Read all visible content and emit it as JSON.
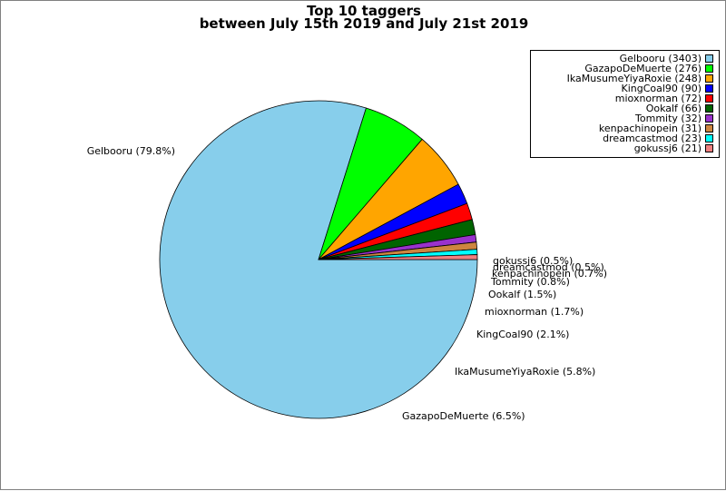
{
  "chart_data": {
    "type": "pie",
    "title": "Top 10 taggers",
    "subtitle": "between July 15th 2019 and July 21st 2019",
    "slices": [
      {
        "label": "Gelbooru",
        "value": 3403,
        "percent": "79.8%",
        "legend": "Gelbooru (3403)",
        "color": "#87ceeb"
      },
      {
        "label": "GazapoDeMuerte",
        "value": 276,
        "percent": "6.5%",
        "legend": "GazapoDeMuerte (276)",
        "color": "#00ff00"
      },
      {
        "label": "IkaMusumeYiyaRoxie",
        "value": 248,
        "percent": "5.8%",
        "legend": "IkaMusumeYiyaRoxie (248)",
        "color": "#ffa500"
      },
      {
        "label": "KingCoal90",
        "value": 90,
        "percent": "2.1%",
        "legend": "KingCoal90 (90)",
        "color": "#0000ff"
      },
      {
        "label": "mioxnorman",
        "value": 72,
        "percent": "1.7%",
        "legend": "mioxnorman (72)",
        "color": "#ff0000"
      },
      {
        "label": "Ookalf",
        "value": 66,
        "percent": "1.5%",
        "legend": "Ookalf (66)",
        "color": "#006400"
      },
      {
        "label": "Tommity",
        "value": 32,
        "percent": "0.8%",
        "legend": "Tommity (32)",
        "color": "#9932cc"
      },
      {
        "label": "kenpachinopein",
        "value": 31,
        "percent": "0.7%",
        "legend": "kenpachinopein (31)",
        "color": "#cd853f"
      },
      {
        "label": "dreamcastmod",
        "value": 23,
        "percent": "0.5%",
        "legend": "dreamcastmod (23)",
        "color": "#00ffff"
      },
      {
        "label": "gokussj6",
        "value": 21,
        "percent": "0.5%",
        "legend": "gokussj6 (21)",
        "color": "#f08080"
      }
    ],
    "start_angle": "3 o'clock, clockwise",
    "legend_position": "top-right"
  }
}
